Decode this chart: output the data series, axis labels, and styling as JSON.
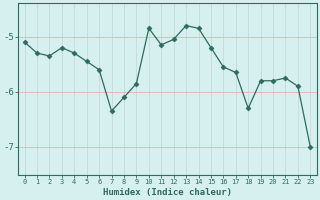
{
  "x": [
    0,
    1,
    2,
    3,
    4,
    5,
    6,
    7,
    8,
    9,
    10,
    11,
    12,
    13,
    14,
    15,
    16,
    17,
    18,
    19,
    20,
    21,
    22,
    23
  ],
  "y": [
    -5.1,
    -5.3,
    -5.35,
    -5.2,
    -5.3,
    -5.45,
    -5.6,
    -6.35,
    -6.1,
    -5.85,
    -4.85,
    -5.15,
    -5.05,
    -4.8,
    -4.85,
    -5.2,
    -5.55,
    -5.65,
    -6.3,
    -5.8,
    -5.8,
    -5.75,
    -5.9,
    -7.0
  ],
  "line_color": "#2e6b5e",
  "marker": "D",
  "marker_size": 2.5,
  "bg_color": "#d6f0ef",
  "grid_color_h": "#e8b8b8",
  "grid_color_v": "#c8dcd8",
  "axis_color": "#2e6b5e",
  "xlabel": "Humidex (Indice chaleur)",
  "ylim": [
    -7.5,
    -4.4
  ],
  "yticks": [
    -7,
    -6,
    -5
  ],
  "xlim": [
    -0.5,
    23.5
  ]
}
